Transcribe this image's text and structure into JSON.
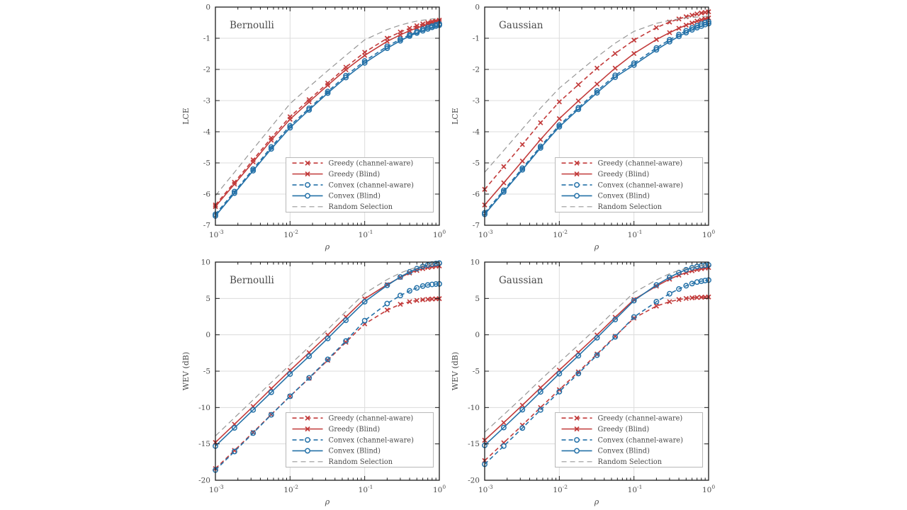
{
  "figure": {
    "background": "#ffffff",
    "layout": "2x2 subplot grid"
  },
  "style": {
    "red": "#c23b3b",
    "blue": "#2471a8",
    "gray": "#979797",
    "grid": "#dcdcdc",
    "axis": "#1c1c1c",
    "text": "#4a4a4a",
    "legend_border": "#b8b8b8"
  },
  "chart_data": [
    {
      "type": "line",
      "title": "Bernoulli",
      "xlabel": "ρ",
      "ylabel": "LCE",
      "xscale": "log",
      "xlim": [
        0.001,
        1
      ],
      "ylim": [
        -7,
        0
      ],
      "xticks": [
        0.001,
        0.01,
        0.1,
        1
      ],
      "yticks": [
        0,
        -1,
        -2,
        -3,
        -4,
        -5,
        -6,
        -7
      ],
      "grid": true,
      "legend_position": "inside lower right",
      "x": [
        0.001,
        0.0018,
        0.0032,
        0.0056,
        0.01,
        0.018,
        0.032,
        0.056,
        0.1,
        0.2,
        0.3,
        0.4,
        0.5,
        0.6,
        0.7,
        0.8,
        0.9,
        1.0
      ],
      "series": [
        {
          "id": "greedy-channel-aware",
          "name": "Greedy (channel-aware)",
          "color": "#c23b3b",
          "dash": "dashed",
          "marker": "x",
          "values": [
            -6.35,
            -5.62,
            -4.9,
            -4.2,
            -3.52,
            -2.97,
            -2.44,
            -1.93,
            -1.45,
            -1.0,
            -0.8,
            -0.68,
            -0.6,
            -0.54,
            -0.5,
            -0.46,
            -0.44,
            -0.42
          ]
        },
        {
          "id": "greedy-blind",
          "name": "Greedy (Blind)",
          "color": "#c23b3b",
          "dash": "solid",
          "marker": "x",
          "values": [
            -6.4,
            -5.68,
            -4.97,
            -4.27,
            -3.6,
            -3.04,
            -2.51,
            -2.01,
            -1.55,
            -1.1,
            -0.89,
            -0.76,
            -0.67,
            -0.61,
            -0.56,
            -0.52,
            -0.49,
            -0.47
          ]
        },
        {
          "id": "convex-channel-aware",
          "name": "Convex (channel-aware)",
          "color": "#2471a8",
          "dash": "dashed",
          "marker": "o",
          "values": [
            -6.65,
            -5.92,
            -5.2,
            -4.49,
            -3.81,
            -3.25,
            -2.71,
            -2.2,
            -1.73,
            -1.26,
            -1.03,
            -0.89,
            -0.79,
            -0.71,
            -0.65,
            -0.61,
            -0.57,
            -0.54
          ]
        },
        {
          "id": "convex-blind",
          "name": "Convex (Blind)",
          "color": "#2471a8",
          "dash": "solid",
          "marker": "o",
          "values": [
            -6.7,
            -5.97,
            -5.25,
            -4.55,
            -3.87,
            -3.3,
            -2.76,
            -2.26,
            -1.79,
            -1.32,
            -1.08,
            -0.93,
            -0.83,
            -0.76,
            -0.7,
            -0.65,
            -0.61,
            -0.58
          ]
        },
        {
          "id": "random-selection",
          "name": "Random Selection",
          "color": "#979797",
          "dash": "dashed",
          "marker": null,
          "values": [
            -6.05,
            -5.3,
            -4.56,
            -3.84,
            -3.1,
            -2.56,
            -2.04,
            -1.55,
            -1.05,
            -0.72,
            -0.58,
            -0.5,
            -0.45,
            -0.42,
            -0.4,
            -0.38,
            -0.37,
            -0.36
          ]
        }
      ]
    },
    {
      "type": "line",
      "title": "Gaussian",
      "xlabel": "ρ",
      "ylabel": "LCE",
      "xscale": "log",
      "xlim": [
        0.001,
        1
      ],
      "ylim": [
        -7,
        0
      ],
      "xticks": [
        0.001,
        0.01,
        0.1,
        1
      ],
      "yticks": [
        0,
        -1,
        -2,
        -3,
        -4,
        -5,
        -6,
        -7
      ],
      "grid": true,
      "legend_position": "inside lower right",
      "x": [
        0.001,
        0.0018,
        0.0032,
        0.0056,
        0.01,
        0.018,
        0.032,
        0.056,
        0.1,
        0.2,
        0.3,
        0.4,
        0.5,
        0.6,
        0.7,
        0.8,
        0.9,
        1.0
      ],
      "series": [
        {
          "id": "greedy-channel-aware",
          "name": "Greedy (channel-aware)",
          "color": "#c23b3b",
          "dash": "dashed",
          "marker": "x",
          "values": [
            -5.85,
            -5.12,
            -4.41,
            -3.71,
            -3.04,
            -2.49,
            -1.96,
            -1.49,
            -1.06,
            -0.66,
            -0.48,
            -0.38,
            -0.31,
            -0.26,
            -0.22,
            -0.19,
            -0.17,
            -0.15
          ]
        },
        {
          "id": "greedy-blind",
          "name": "Greedy (Blind)",
          "color": "#c23b3b",
          "dash": "solid",
          "marker": "x",
          "values": [
            -6.35,
            -5.64,
            -4.94,
            -4.25,
            -3.58,
            -3.01,
            -2.47,
            -1.96,
            -1.49,
            -1.04,
            -0.82,
            -0.68,
            -0.58,
            -0.51,
            -0.45,
            -0.41,
            -0.38,
            -0.35
          ]
        },
        {
          "id": "convex-channel-aware",
          "name": "Convex (channel-aware)",
          "color": "#2471a8",
          "dash": "dashed",
          "marker": "o",
          "values": [
            -6.6,
            -5.88,
            -5.17,
            -4.47,
            -3.79,
            -3.23,
            -2.69,
            -2.19,
            -1.8,
            -1.31,
            -1.05,
            -0.88,
            -0.76,
            -0.67,
            -0.6,
            -0.55,
            -0.5,
            -0.47
          ]
        },
        {
          "id": "convex-blind",
          "name": "Convex (Blind)",
          "color": "#2471a8",
          "dash": "solid",
          "marker": "o",
          "values": [
            -6.65,
            -5.93,
            -5.22,
            -4.52,
            -3.84,
            -3.28,
            -2.75,
            -2.25,
            -1.86,
            -1.37,
            -1.11,
            -0.94,
            -0.82,
            -0.73,
            -0.66,
            -0.61,
            -0.56,
            -0.53
          ]
        },
        {
          "id": "random-selection",
          "name": "Random Selection",
          "color": "#979797",
          "dash": "dashed",
          "marker": null,
          "values": [
            -5.3,
            -4.6,
            -3.91,
            -3.24,
            -2.6,
            -2.09,
            -1.6,
            -1.16,
            -0.78,
            -0.52,
            -0.43,
            -0.38,
            -0.35,
            -0.33,
            -0.32,
            -0.31,
            -0.3,
            -0.3
          ]
        }
      ]
    },
    {
      "type": "line",
      "title": "Bernoulli",
      "xlabel": "ρ",
      "ylabel": "WEV (dB)",
      "xscale": "log",
      "xlim": [
        0.001,
        1
      ],
      "ylim": [
        -20,
        10
      ],
      "xticks": [
        0.001,
        0.01,
        0.1,
        1
      ],
      "yticks": [
        10,
        5,
        0,
        -5,
        -10,
        -15,
        -20
      ],
      "grid": true,
      "legend_position": "inside lower right",
      "x": [
        0.001,
        0.0018,
        0.0032,
        0.0056,
        0.01,
        0.018,
        0.032,
        0.056,
        0.1,
        0.2,
        0.3,
        0.4,
        0.5,
        0.6,
        0.7,
        0.8,
        0.9,
        1.0
      ],
      "series": [
        {
          "id": "greedy-channel-aware",
          "name": "Greedy (channel-aware)",
          "color": "#c23b3b",
          "dash": "dashed",
          "marker": "x",
          "values": [
            -18.4,
            -15.9,
            -13.42,
            -10.95,
            -8.45,
            -5.98,
            -3.5,
            -1.02,
            1.5,
            3.4,
            4.2,
            4.55,
            4.72,
            4.82,
            4.88,
            4.92,
            4.95,
            4.97
          ]
        },
        {
          "id": "greedy-blind",
          "name": "Greedy (Blind)",
          "color": "#c23b3b",
          "dash": "solid",
          "marker": "x",
          "values": [
            -14.8,
            -12.3,
            -9.85,
            -7.4,
            -4.9,
            -2.45,
            -0.02,
            2.45,
            4.95,
            6.9,
            7.9,
            8.5,
            8.85,
            9.1,
            9.25,
            9.35,
            9.42,
            9.47
          ]
        },
        {
          "id": "convex-channel-aware",
          "name": "Convex (channel-aware)",
          "color": "#2471a8",
          "dash": "dashed",
          "marker": "o",
          "values": [
            -18.6,
            -16.05,
            -13.52,
            -11.0,
            -8.45,
            -5.92,
            -3.38,
            -0.85,
            1.95,
            4.3,
            5.4,
            6.05,
            6.45,
            6.7,
            6.85,
            6.93,
            6.98,
            7.0
          ]
        },
        {
          "id": "convex-blind",
          "name": "Convex (Blind)",
          "color": "#2471a8",
          "dash": "solid",
          "marker": "o",
          "values": [
            -15.3,
            -12.8,
            -10.33,
            -7.9,
            -5.4,
            -2.95,
            -0.5,
            2.0,
            4.55,
            6.8,
            7.95,
            8.65,
            9.1,
            9.4,
            9.6,
            9.72,
            9.8,
            9.86
          ]
        },
        {
          "id": "random-selection",
          "name": "Random Selection",
          "color": "#979797",
          "dash": "dashed",
          "marker": null,
          "values": [
            -13.9,
            -11.4,
            -8.95,
            -6.55,
            -4.1,
            -1.65,
            0.75,
            3.2,
            5.7,
            7.6,
            8.5,
            9.0,
            9.3,
            9.5,
            9.62,
            9.72,
            9.78,
            9.82
          ]
        }
      ]
    },
    {
      "type": "line",
      "title": "Gaussian",
      "xlabel": "ρ",
      "ylabel": "WEV (dB)",
      "xscale": "log",
      "xlim": [
        0.001,
        1
      ],
      "ylim": [
        -20,
        10
      ],
      "xticks": [
        0.001,
        0.01,
        0.1,
        1
      ],
      "yticks": [
        10,
        5,
        0,
        -5,
        -10,
        -15,
        -20
      ],
      "grid": true,
      "legend_position": "inside lower right",
      "x": [
        0.001,
        0.0018,
        0.0032,
        0.0056,
        0.01,
        0.018,
        0.032,
        0.056,
        0.1,
        0.2,
        0.3,
        0.4,
        0.5,
        0.6,
        0.7,
        0.8,
        0.9,
        1.0
      ],
      "series": [
        {
          "id": "greedy-channel-aware",
          "name": "Greedy (channel-aware)",
          "color": "#c23b3b",
          "dash": "dashed",
          "marker": "x",
          "values": [
            -17.3,
            -14.85,
            -12.42,
            -10.0,
            -7.55,
            -5.1,
            -2.65,
            -0.2,
            2.3,
            3.95,
            4.55,
            4.85,
            5.0,
            5.08,
            5.13,
            5.16,
            5.18,
            5.2
          ]
        },
        {
          "id": "greedy-blind",
          "name": "Greedy (Blind)",
          "color": "#c23b3b",
          "dash": "solid",
          "marker": "x",
          "values": [
            -14.5,
            -12.08,
            -9.68,
            -7.28,
            -4.85,
            -2.43,
            -0.02,
            2.4,
            4.85,
            6.7,
            7.65,
            8.2,
            8.55,
            8.8,
            8.97,
            9.1,
            9.18,
            9.25
          ]
        },
        {
          "id": "convex-channel-aware",
          "name": "Convex (channel-aware)",
          "color": "#2471a8",
          "dash": "dashed",
          "marker": "o",
          "values": [
            -17.8,
            -15.3,
            -12.82,
            -10.33,
            -7.82,
            -5.32,
            -2.8,
            -0.28,
            2.45,
            4.55,
            5.65,
            6.3,
            6.75,
            7.05,
            7.25,
            7.38,
            7.46,
            7.52
          ]
        },
        {
          "id": "convex-blind",
          "name": "Convex (Blind)",
          "color": "#2471a8",
          "dash": "solid",
          "marker": "o",
          "values": [
            -15.2,
            -12.75,
            -10.3,
            -7.85,
            -5.35,
            -2.88,
            -0.4,
            2.1,
            4.7,
            6.85,
            7.9,
            8.55,
            8.95,
            9.22,
            9.4,
            9.5,
            9.56,
            9.6
          ]
        },
        {
          "id": "random-selection",
          "name": "Random Selection",
          "color": "#979797",
          "dash": "dashed",
          "marker": null,
          "values": [
            -13.4,
            -10.98,
            -8.6,
            -6.2,
            -3.8,
            -1.4,
            0.98,
            3.38,
            5.8,
            7.55,
            8.4,
            8.85,
            9.12,
            9.3,
            9.42,
            9.5,
            9.56,
            9.6
          ]
        }
      ]
    }
  ]
}
